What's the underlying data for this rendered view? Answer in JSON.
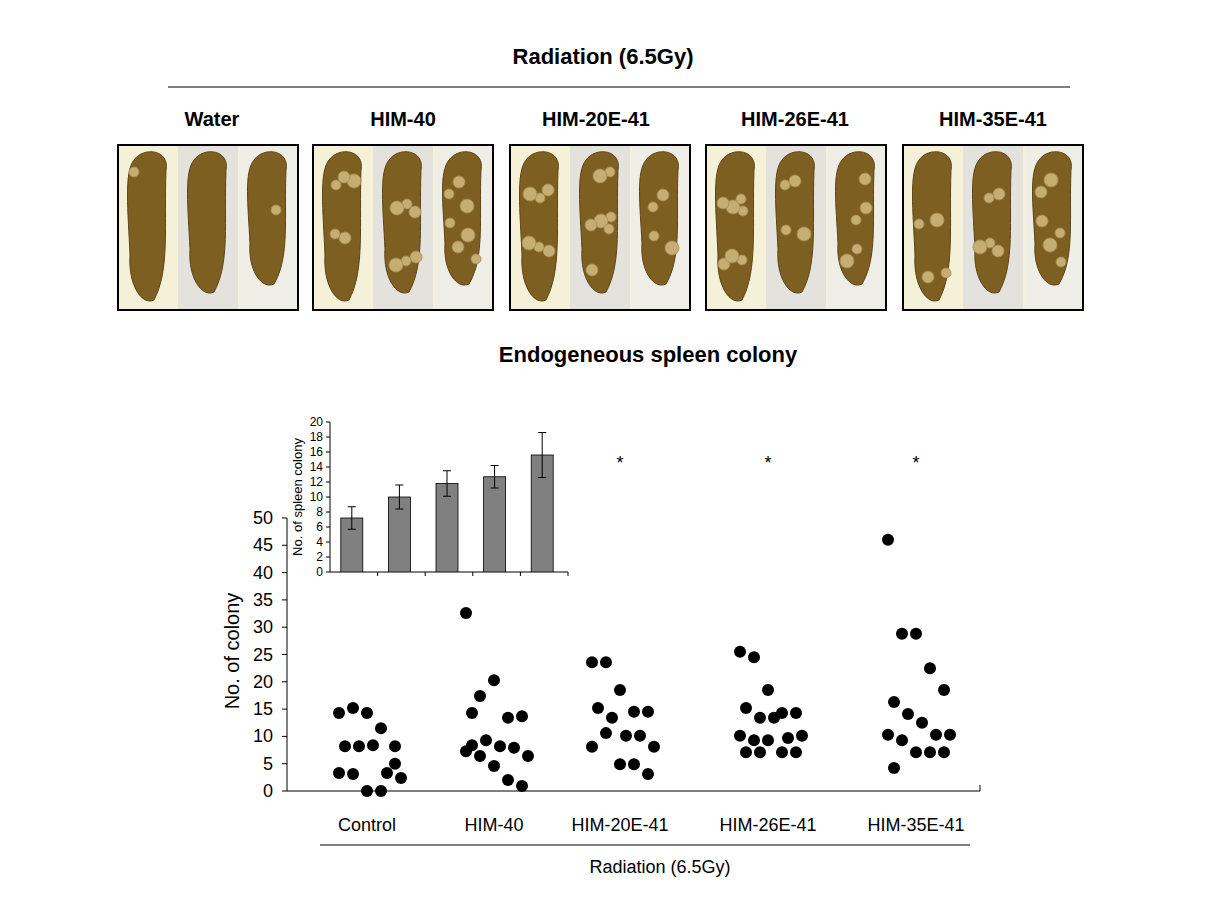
{
  "photo_panel": {
    "title": "Radiation (6.5Gy)",
    "panels": [
      "Water",
      "HIM-40",
      "HIM-20E-41",
      "HIM-26E-41",
      "HIM-35E-41"
    ]
  },
  "chart_data": [
    {
      "type": "dot",
      "title": "Endogeneous spleen colony",
      "categories": [
        "Control",
        "HIM-40",
        "HIM-20E-41",
        "HIM-26E-41",
        "HIM-35E-41"
      ],
      "values": [
        [
          14.3,
          15.2,
          14.3,
          11.5,
          8.2,
          8.2,
          8.2,
          8.4,
          3.3,
          2.4,
          3.3,
          3.1,
          0,
          0,
          5
        ],
        [
          32.6,
          17.4,
          20.3,
          13.4,
          13.7,
          14.3,
          9.3,
          8.2,
          7.9,
          6.4,
          7.3,
          6.4,
          4.6,
          2,
          0.9,
          8.4
        ],
        [
          23.6,
          23.6,
          18.5,
          14.5,
          14.5,
          15.2,
          13.4,
          10.1,
          10.1,
          8.1,
          8.1,
          10.6,
          4.9,
          4.9,
          3.1
        ],
        [
          25.5,
          24.5,
          18.5,
          14.3,
          14.3,
          15.2,
          13.4,
          13.4,
          9.7,
          10.1,
          10.1,
          9.3,
          9.3,
          7.1,
          7.1,
          7.1,
          7.1
        ],
        [
          46,
          28.8,
          28.8,
          22.5,
          18.5,
          16.3,
          14.1,
          12.5,
          10.3,
          10.3,
          10.3,
          9.3,
          7.1,
          7.1,
          7.1,
          4.2
        ]
      ],
      "y_label": "No. of colony",
      "x_label": "Radiation (6.5Gy)",
      "ylim": [
        0,
        50
      ],
      "yticks": [
        0,
        5,
        10,
        15,
        20,
        25,
        30,
        35,
        40,
        45,
        50
      ],
      "color": "#000000",
      "marker": "circle",
      "annotations": [
        {
          "category": "HIM-20E-41",
          "text": "*"
        },
        {
          "category": "HIM-26E-41",
          "text": "*"
        },
        {
          "category": "HIM-35E-41",
          "text": "*"
        }
      ]
    },
    {
      "type": "bar",
      "categories": [
        null,
        null,
        null,
        null,
        null
      ],
      "values": [
        7.2,
        10,
        11.8,
        12.7,
        15.6
      ],
      "errors": [
        1.5,
        1.6,
        1.7,
        1.5,
        3
      ],
      "y_label": "No. of spleen colony",
      "ylim": [
        0,
        20
      ],
      "yticks": [
        0,
        2,
        4,
        6,
        8,
        10,
        12,
        14,
        16,
        18,
        20
      ],
      "color": "#808080",
      "tick_labels": "y"
    }
  ]
}
